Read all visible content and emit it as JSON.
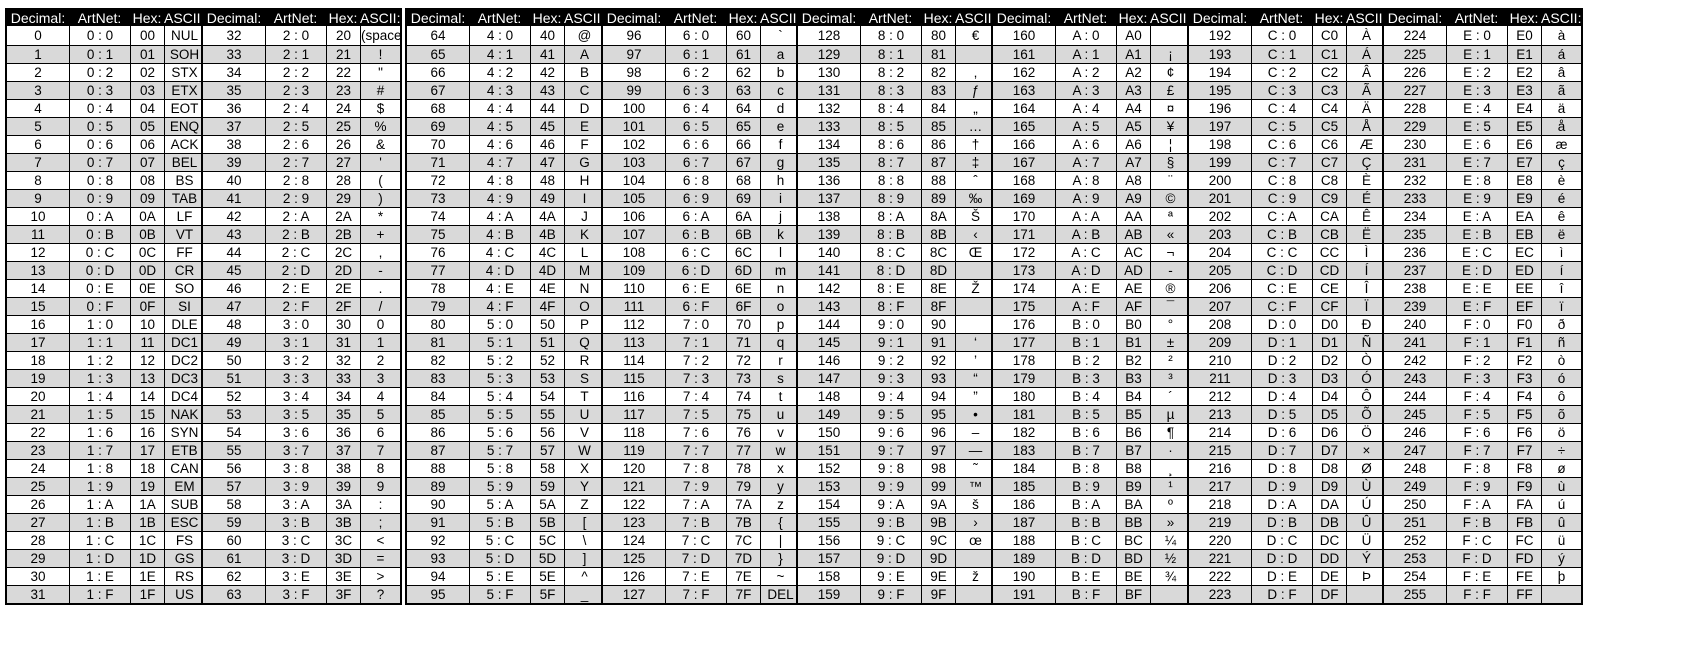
{
  "headers": [
    "Decimal:",
    "ArtNet:",
    "Hex:",
    "ASCII:"
  ],
  "colors": {
    "header_bg": "#000000",
    "header_text": "#ffffff",
    "shaded_row": "#d9d9d9",
    "border": "#000000"
  },
  "tables": [
    [
      [
        "0",
        "0 : 0",
        "00",
        "NUL"
      ],
      [
        "1",
        "0 : 1",
        "01",
        "SOH"
      ],
      [
        "2",
        "0 : 2",
        "02",
        "STX"
      ],
      [
        "3",
        "0 : 3",
        "03",
        "ETX"
      ],
      [
        "4",
        "0 : 4",
        "04",
        "EOT"
      ],
      [
        "5",
        "0 : 5",
        "05",
        "ENQ"
      ],
      [
        "6",
        "0 : 6",
        "06",
        "ACK"
      ],
      [
        "7",
        "0 : 7",
        "07",
        "BEL"
      ],
      [
        "8",
        "0 : 8",
        "08",
        "BS"
      ],
      [
        "9",
        "0 : 9",
        "09",
        "TAB"
      ],
      [
        "10",
        "0 : A",
        "0A",
        "LF"
      ],
      [
        "11",
        "0 : B",
        "0B",
        "VT"
      ],
      [
        "12",
        "0 : C",
        "0C",
        "FF"
      ],
      [
        "13",
        "0 : D",
        "0D",
        "CR"
      ],
      [
        "14",
        "0 : E",
        "0E",
        "SO"
      ],
      [
        "15",
        "0 : F",
        "0F",
        "SI"
      ],
      [
        "16",
        "1 : 0",
        "10",
        "DLE"
      ],
      [
        "17",
        "1 : 1",
        "11",
        "DC1"
      ],
      [
        "18",
        "1 : 2",
        "12",
        "DC2"
      ],
      [
        "19",
        "1 : 3",
        "13",
        "DC3"
      ],
      [
        "20",
        "1 : 4",
        "14",
        "DC4"
      ],
      [
        "21",
        "1 : 5",
        "15",
        "NAK"
      ],
      [
        "22",
        "1 : 6",
        "16",
        "SYN"
      ],
      [
        "23",
        "1 : 7",
        "17",
        "ETB"
      ],
      [
        "24",
        "1 : 8",
        "18",
        "CAN"
      ],
      [
        "25",
        "1 : 9",
        "19",
        "EM"
      ],
      [
        "26",
        "1 : A",
        "1A",
        "SUB"
      ],
      [
        "27",
        "1 : B",
        "1B",
        "ESC"
      ],
      [
        "28",
        "1 : C",
        "1C",
        "FS"
      ],
      [
        "29",
        "1 : D",
        "1D",
        "GS"
      ],
      [
        "30",
        "1 : E",
        "1E",
        "RS"
      ],
      [
        "31",
        "1 : F",
        "1F",
        "US"
      ]
    ],
    [
      [
        "32",
        "2 : 0",
        "20",
        "(space)"
      ],
      [
        "33",
        "2 : 1",
        "21",
        "!"
      ],
      [
        "34",
        "2 : 2",
        "22",
        "\""
      ],
      [
        "35",
        "2 : 3",
        "23",
        "#"
      ],
      [
        "36",
        "2 : 4",
        "24",
        "$"
      ],
      [
        "37",
        "2 : 5",
        "25",
        "%"
      ],
      [
        "38",
        "2 : 6",
        "26",
        "&"
      ],
      [
        "39",
        "2 : 7",
        "27",
        "'"
      ],
      [
        "40",
        "2 : 8",
        "28",
        "("
      ],
      [
        "41",
        "2 : 9",
        "29",
        ")"
      ],
      [
        "42",
        "2 : A",
        "2A",
        "*"
      ],
      [
        "43",
        "2 : B",
        "2B",
        "+"
      ],
      [
        "44",
        "2 : C",
        "2C",
        ","
      ],
      [
        "45",
        "2 : D",
        "2D",
        "-"
      ],
      [
        "46",
        "2 : E",
        "2E",
        "."
      ],
      [
        "47",
        "2 : F",
        "2F",
        "/"
      ],
      [
        "48",
        "3 : 0",
        "30",
        "0"
      ],
      [
        "49",
        "3 : 1",
        "31",
        "1"
      ],
      [
        "50",
        "3 : 2",
        "32",
        "2"
      ],
      [
        "51",
        "3 : 3",
        "33",
        "3"
      ],
      [
        "52",
        "3 : 4",
        "34",
        "4"
      ],
      [
        "53",
        "3 : 5",
        "35",
        "5"
      ],
      [
        "54",
        "3 : 6",
        "36",
        "6"
      ],
      [
        "55",
        "3 : 7",
        "37",
        "7"
      ],
      [
        "56",
        "3 : 8",
        "38",
        "8"
      ],
      [
        "57",
        "3 : 9",
        "39",
        "9"
      ],
      [
        "58",
        "3 : A",
        "3A",
        ":"
      ],
      [
        "59",
        "3 : B",
        "3B",
        ";"
      ],
      [
        "60",
        "3 : C",
        "3C",
        "<"
      ],
      [
        "61",
        "3 : D",
        "3D",
        "="
      ],
      [
        "62",
        "3 : E",
        "3E",
        ">"
      ],
      [
        "63",
        "3 : F",
        "3F",
        "?"
      ]
    ],
    [
      [
        "64",
        "4 : 0",
        "40",
        "@"
      ],
      [
        "65",
        "4 : 1",
        "41",
        "A"
      ],
      [
        "66",
        "4 : 2",
        "42",
        "B"
      ],
      [
        "67",
        "4 : 3",
        "43",
        "C"
      ],
      [
        "68",
        "4 : 4",
        "44",
        "D"
      ],
      [
        "69",
        "4 : 5",
        "45",
        "E"
      ],
      [
        "70",
        "4 : 6",
        "46",
        "F"
      ],
      [
        "71",
        "4 : 7",
        "47",
        "G"
      ],
      [
        "72",
        "4 : 8",
        "48",
        "H"
      ],
      [
        "73",
        "4 : 9",
        "49",
        "I"
      ],
      [
        "74",
        "4 : A",
        "4A",
        "J"
      ],
      [
        "75",
        "4 : B",
        "4B",
        "K"
      ],
      [
        "76",
        "4 : C",
        "4C",
        "L"
      ],
      [
        "77",
        "4 : D",
        "4D",
        "M"
      ],
      [
        "78",
        "4 : E",
        "4E",
        "N"
      ],
      [
        "79",
        "4 : F",
        "4F",
        "O"
      ],
      [
        "80",
        "5 : 0",
        "50",
        "P"
      ],
      [
        "81",
        "5 : 1",
        "51",
        "Q"
      ],
      [
        "82",
        "5 : 2",
        "52",
        "R"
      ],
      [
        "83",
        "5 : 3",
        "53",
        "S"
      ],
      [
        "84",
        "5 : 4",
        "54",
        "T"
      ],
      [
        "85",
        "5 : 5",
        "55",
        "U"
      ],
      [
        "86",
        "5 : 6",
        "56",
        "V"
      ],
      [
        "87",
        "5 : 7",
        "57",
        "W"
      ],
      [
        "88",
        "5 : 8",
        "58",
        "X"
      ],
      [
        "89",
        "5 : 9",
        "59",
        "Y"
      ],
      [
        "90",
        "5 : A",
        "5A",
        "Z"
      ],
      [
        "91",
        "5 : B",
        "5B",
        "["
      ],
      [
        "92",
        "5 : C",
        "5C",
        "\\"
      ],
      [
        "93",
        "5 : D",
        "5D",
        "]"
      ],
      [
        "94",
        "5 : E",
        "5E",
        "^"
      ],
      [
        "95",
        "5 : F",
        "5F",
        "_"
      ]
    ],
    [
      [
        "96",
        "6 : 0",
        "60",
        "`"
      ],
      [
        "97",
        "6 : 1",
        "61",
        "a"
      ],
      [
        "98",
        "6 : 2",
        "62",
        "b"
      ],
      [
        "99",
        "6 : 3",
        "63",
        "c"
      ],
      [
        "100",
        "6 : 4",
        "64",
        "d"
      ],
      [
        "101",
        "6 : 5",
        "65",
        "e"
      ],
      [
        "102",
        "6 : 6",
        "66",
        "f"
      ],
      [
        "103",
        "6 : 7",
        "67",
        "g"
      ],
      [
        "104",
        "6 : 8",
        "68",
        "h"
      ],
      [
        "105",
        "6 : 9",
        "69",
        "i"
      ],
      [
        "106",
        "6 : A",
        "6A",
        "j"
      ],
      [
        "107",
        "6 : B",
        "6B",
        "k"
      ],
      [
        "108",
        "6 : C",
        "6C",
        "l"
      ],
      [
        "109",
        "6 : D",
        "6D",
        "m"
      ],
      [
        "110",
        "6 : E",
        "6E",
        "n"
      ],
      [
        "111",
        "6 : F",
        "6F",
        "o"
      ],
      [
        "112",
        "7 : 0",
        "70",
        "p"
      ],
      [
        "113",
        "7 : 1",
        "71",
        "q"
      ],
      [
        "114",
        "7 : 2",
        "72",
        "r"
      ],
      [
        "115",
        "7 : 3",
        "73",
        "s"
      ],
      [
        "116",
        "7 : 4",
        "74",
        "t"
      ],
      [
        "117",
        "7 : 5",
        "75",
        "u"
      ],
      [
        "118",
        "7 : 6",
        "76",
        "v"
      ],
      [
        "119",
        "7 : 7",
        "77",
        "w"
      ],
      [
        "120",
        "7 : 8",
        "78",
        "x"
      ],
      [
        "121",
        "7 : 9",
        "79",
        "y"
      ],
      [
        "122",
        "7 : A",
        "7A",
        "z"
      ],
      [
        "123",
        "7 : B",
        "7B",
        "{"
      ],
      [
        "124",
        "7 : C",
        "7C",
        "|"
      ],
      [
        "125",
        "7 : D",
        "7D",
        "}"
      ],
      [
        "126",
        "7 : E",
        "7E",
        "~"
      ],
      [
        "127",
        "7 : F",
        "7F",
        "DEL"
      ]
    ],
    [
      [
        "128",
        "8 : 0",
        "80",
        "€"
      ],
      [
        "129",
        "8 : 1",
        "81",
        ""
      ],
      [
        "130",
        "8 : 2",
        "82",
        "‚"
      ],
      [
        "131",
        "8 : 3",
        "83",
        "ƒ"
      ],
      [
        "132",
        "8 : 4",
        "84",
        "„"
      ],
      [
        "133",
        "8 : 5",
        "85",
        "…"
      ],
      [
        "134",
        "8 : 6",
        "86",
        "†"
      ],
      [
        "135",
        "8 : 7",
        "87",
        "‡"
      ],
      [
        "136",
        "8 : 8",
        "88",
        "ˆ"
      ],
      [
        "137",
        "8 : 9",
        "89",
        "‰"
      ],
      [
        "138",
        "8 : A",
        "8A",
        "Š"
      ],
      [
        "139",
        "8 : B",
        "8B",
        "‹"
      ],
      [
        "140",
        "8 : C",
        "8C",
        "Œ"
      ],
      [
        "141",
        "8 : D",
        "8D",
        ""
      ],
      [
        "142",
        "8 : E",
        "8E",
        "Ž"
      ],
      [
        "143",
        "8 : F",
        "8F",
        ""
      ],
      [
        "144",
        "9 : 0",
        "90",
        ""
      ],
      [
        "145",
        "9 : 1",
        "91",
        "‘"
      ],
      [
        "146",
        "9 : 2",
        "92",
        "’"
      ],
      [
        "147",
        "9 : 3",
        "93",
        "“"
      ],
      [
        "148",
        "9 : 4",
        "94",
        "”"
      ],
      [
        "149",
        "9 : 5",
        "95",
        "•"
      ],
      [
        "150",
        "9 : 6",
        "96",
        "–"
      ],
      [
        "151",
        "9 : 7",
        "97",
        "—"
      ],
      [
        "152",
        "9 : 8",
        "98",
        "˜"
      ],
      [
        "153",
        "9 : 9",
        "99",
        "™"
      ],
      [
        "154",
        "9 : A",
        "9A",
        "š"
      ],
      [
        "155",
        "9 : B",
        "9B",
        "›"
      ],
      [
        "156",
        "9 : C",
        "9C",
        "œ"
      ],
      [
        "157",
        "9 : D",
        "9D",
        ""
      ],
      [
        "158",
        "9 : E",
        "9E",
        "ž"
      ],
      [
        "159",
        "9 : F",
        "9F",
        ""
      ]
    ],
    [
      [
        "160",
        "A : 0",
        "A0",
        ""
      ],
      [
        "161",
        "A : 1",
        "A1",
        "¡"
      ],
      [
        "162",
        "A : 2",
        "A2",
        "¢"
      ],
      [
        "163",
        "A : 3",
        "A3",
        "£"
      ],
      [
        "164",
        "A : 4",
        "A4",
        "¤"
      ],
      [
        "165",
        "A : 5",
        "A5",
        "¥"
      ],
      [
        "166",
        "A : 6",
        "A6",
        "¦"
      ],
      [
        "167",
        "A : 7",
        "A7",
        "§"
      ],
      [
        "168",
        "A : 8",
        "A8",
        "¨"
      ],
      [
        "169",
        "A : 9",
        "A9",
        "©"
      ],
      [
        "170",
        "A : A",
        "AA",
        "ª"
      ],
      [
        "171",
        "A : B",
        "AB",
        "«"
      ],
      [
        "172",
        "A : C",
        "AC",
        "¬"
      ],
      [
        "173",
        "A : D",
        "AD",
        "-"
      ],
      [
        "174",
        "A : E",
        "AE",
        "®"
      ],
      [
        "175",
        "A : F",
        "AF",
        "¯"
      ],
      [
        "176",
        "B : 0",
        "B0",
        "°"
      ],
      [
        "177",
        "B : 1",
        "B1",
        "±"
      ],
      [
        "178",
        "B : 2",
        "B2",
        "²"
      ],
      [
        "179",
        "B : 3",
        "B3",
        "³"
      ],
      [
        "180",
        "B : 4",
        "B4",
        "´"
      ],
      [
        "181",
        "B : 5",
        "B5",
        "µ"
      ],
      [
        "182",
        "B : 6",
        "B6",
        "¶"
      ],
      [
        "183",
        "B : 7",
        "B7",
        "·"
      ],
      [
        "184",
        "B : 8",
        "B8",
        "¸"
      ],
      [
        "185",
        "B : 9",
        "B9",
        "¹"
      ],
      [
        "186",
        "B : A",
        "BA",
        "º"
      ],
      [
        "187",
        "B : B",
        "BB",
        "»"
      ],
      [
        "188",
        "B : C",
        "BC",
        "¼"
      ],
      [
        "189",
        "B : D",
        "BD",
        "½"
      ],
      [
        "190",
        "B : E",
        "BE",
        "¾"
      ],
      [
        "191",
        "B : F",
        "BF",
        ""
      ]
    ],
    [
      [
        "192",
        "C : 0",
        "C0",
        "À"
      ],
      [
        "193",
        "C : 1",
        "C1",
        "Á"
      ],
      [
        "194",
        "C : 2",
        "C2",
        "Â"
      ],
      [
        "195",
        "C : 3",
        "C3",
        "Ã"
      ],
      [
        "196",
        "C : 4",
        "C4",
        "Ä"
      ],
      [
        "197",
        "C : 5",
        "C5",
        "Å"
      ],
      [
        "198",
        "C : 6",
        "C6",
        "Æ"
      ],
      [
        "199",
        "C : 7",
        "C7",
        "Ç"
      ],
      [
        "200",
        "C : 8",
        "C8",
        "È"
      ],
      [
        "201",
        "C : 9",
        "C9",
        "É"
      ],
      [
        "202",
        "C : A",
        "CA",
        "Ê"
      ],
      [
        "203",
        "C : B",
        "CB",
        "Ë"
      ],
      [
        "204",
        "C : C",
        "CC",
        "Ì"
      ],
      [
        "205",
        "C : D",
        "CD",
        "Í"
      ],
      [
        "206",
        "C : E",
        "CE",
        "Î"
      ],
      [
        "207",
        "C : F",
        "CF",
        "Ï"
      ],
      [
        "208",
        "D : 0",
        "D0",
        "Ð"
      ],
      [
        "209",
        "D : 1",
        "D1",
        "Ñ"
      ],
      [
        "210",
        "D : 2",
        "D2",
        "Ò"
      ],
      [
        "211",
        "D : 3",
        "D3",
        "Ó"
      ],
      [
        "212",
        "D : 4",
        "D4",
        "Ô"
      ],
      [
        "213",
        "D : 5",
        "D5",
        "Õ"
      ],
      [
        "214",
        "D : 6",
        "D6",
        "Ö"
      ],
      [
        "215",
        "D : 7",
        "D7",
        "×"
      ],
      [
        "216",
        "D : 8",
        "D8",
        "Ø"
      ],
      [
        "217",
        "D : 9",
        "D9",
        "Ù"
      ],
      [
        "218",
        "D : A",
        "DA",
        "Ú"
      ],
      [
        "219",
        "D : B",
        "DB",
        "Û"
      ],
      [
        "220",
        "D : C",
        "DC",
        "Ü"
      ],
      [
        "221",
        "D : D",
        "DD",
        "Ý"
      ],
      [
        "222",
        "D : E",
        "DE",
        "Þ"
      ],
      [
        "223",
        "D : F",
        "DF",
        ""
      ]
    ],
    [
      [
        "224",
        "E : 0",
        "E0",
        "à"
      ],
      [
        "225",
        "E : 1",
        "E1",
        "á"
      ],
      [
        "226",
        "E : 2",
        "E2",
        "â"
      ],
      [
        "227",
        "E : 3",
        "E3",
        "ã"
      ],
      [
        "228",
        "E : 4",
        "E4",
        "ä"
      ],
      [
        "229",
        "E : 5",
        "E5",
        "å"
      ],
      [
        "230",
        "E : 6",
        "E6",
        "æ"
      ],
      [
        "231",
        "E : 7",
        "E7",
        "ç"
      ],
      [
        "232",
        "E : 8",
        "E8",
        "è"
      ],
      [
        "233",
        "E : 9",
        "E9",
        "é"
      ],
      [
        "234",
        "E : A",
        "EA",
        "ê"
      ],
      [
        "235",
        "E : B",
        "EB",
        "ë"
      ],
      [
        "236",
        "E : C",
        "EC",
        "ì"
      ],
      [
        "237",
        "E : D",
        "ED",
        "í"
      ],
      [
        "238",
        "E : E",
        "EE",
        "î"
      ],
      [
        "239",
        "E : F",
        "EF",
        "ï"
      ],
      [
        "240",
        "F : 0",
        "F0",
        "ð"
      ],
      [
        "241",
        "F : 1",
        "F1",
        "ñ"
      ],
      [
        "242",
        "F : 2",
        "F2",
        "ò"
      ],
      [
        "243",
        "F : 3",
        "F3",
        "ó"
      ],
      [
        "244",
        "F : 4",
        "F4",
        "ô"
      ],
      [
        "245",
        "F : 5",
        "F5",
        "õ"
      ],
      [
        "246",
        "F : 6",
        "F6",
        "ö"
      ],
      [
        "247",
        "F : 7",
        "F7",
        "÷"
      ],
      [
        "248",
        "F : 8",
        "F8",
        "ø"
      ],
      [
        "249",
        "F : 9",
        "F9",
        "ù"
      ],
      [
        "250",
        "F : A",
        "FA",
        "ú"
      ],
      [
        "251",
        "F : B",
        "FB",
        "û"
      ],
      [
        "252",
        "F : C",
        "FC",
        "ü"
      ],
      [
        "253",
        "F : D",
        "FD",
        "ý"
      ],
      [
        "254",
        "F : E",
        "FE",
        "þ"
      ],
      [
        "255",
        "F : F",
        "FF",
        ""
      ]
    ]
  ]
}
